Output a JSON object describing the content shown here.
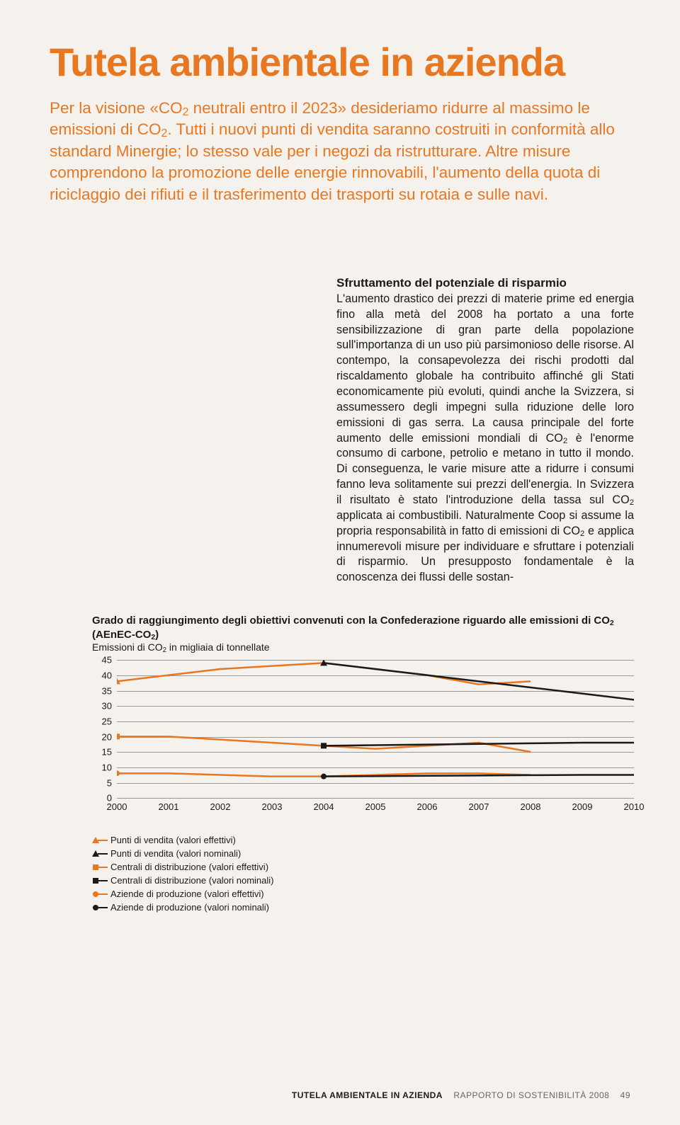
{
  "title": "Tutela ambientale in azienda",
  "intro": "Per la visione «CO<sub>2</sub> neutrali entro il 2023» desideriamo ridurre al massimo le emissioni di CO<sub>2</sub>. Tutti i nuovi punti di vendita saranno costruiti in conformità allo standard Minergie; lo stesso vale per i negozi da ristrutturare. Altre misure comprendono la promozione delle energie rinnovabili, l'aumento della quota di riciclaggio dei rifiuti e il trasferimento dei trasporti su rotaia e sulle navi.",
  "section_heading": "Sfruttamento del potenziale di risparmio",
  "section_body": "L'aumento drastico dei prezzi di materie prime ed energia fino alla metà del 2008 ha portato a una forte sensibilizzazione di gran parte della popolazione sull'importanza di un uso più parsimonioso delle risorse. Al contempo, la consapevolezza dei rischi prodotti dal riscaldamento globale ha contribuito affinché gli Stati economicamente più evoluti, quindi anche la Svizzera, si assumessero degli impegni sulla riduzione delle loro emissioni di gas serra. La causa principale del forte aumento delle emissioni mondiali di CO<sub>2</sub> è l'enorme consumo di carbone, petrolio e metano in tutto il mondo. Di conseguenza, le varie misure atte a ridurre i consumi fanno leva solitamente sui prezzi dell'energia. In Svizzera il risultato è stato l'introduzione della tassa sul CO<sub>2</sub> applicata ai combustibili. Naturalmente Coop si assume la propria responsabilità in fatto di emissioni di CO<sub>2</sub> e applica innumerevoli misure per individuare e sfruttare i potenziali di risparmio. Un presupposto fondamentale è la conoscenza dei flussi delle sostan-",
  "chart": {
    "title": "Grado di raggiungimento degli obiettivi convenuti con la Confederazione riguardo alle emissioni di CO<sub>2</sub> (AEnEC-CO<sub>2</sub>)",
    "subtitle": "Emissioni di CO<sub>2</sub> in migliaia di tonnellate",
    "y_ticks": [
      45,
      40,
      35,
      30,
      25,
      20,
      15,
      10,
      5,
      0
    ],
    "y_max": 45,
    "x_labels": [
      "2000",
      "2001",
      "2002",
      "2003",
      "2004",
      "2005",
      "2006",
      "2007",
      "2008",
      "2009",
      "2010"
    ],
    "grid_color": "#999999",
    "colors": {
      "effective": "#e87722",
      "nominal": "#1a1a1a"
    },
    "series": {
      "pv_eff": {
        "start_year": 2000,
        "values": [
          38,
          40,
          42,
          43,
          44,
          42,
          40,
          37,
          38
        ],
        "marker": "triangle",
        "color": "#e87722"
      },
      "pv_nom": {
        "start_year": 2004,
        "values": [
          44,
          42,
          40,
          38,
          36,
          34,
          32
        ],
        "marker": "triangle",
        "color": "#1a1a1a"
      },
      "cd_eff": {
        "start_year": 2000,
        "values": [
          20,
          20,
          19,
          18,
          17,
          16,
          17,
          18,
          15
        ],
        "marker": "square",
        "color": "#e87722"
      },
      "cd_nom": {
        "start_year": 2004,
        "values": [
          17,
          17.2,
          17.4,
          17.6,
          17.8,
          18,
          18
        ],
        "marker": "square",
        "color": "#1a1a1a"
      },
      "ap_eff": {
        "start_year": 2000,
        "values": [
          8,
          8,
          7.5,
          7,
          7,
          7.5,
          8,
          8,
          7.5
        ],
        "marker": "circle",
        "color": "#e87722"
      },
      "ap_nom": {
        "start_year": 2004,
        "values": [
          7,
          7.1,
          7.2,
          7.3,
          7.4,
          7.5,
          7.5
        ],
        "marker": "circle",
        "color": "#1a1a1a"
      }
    },
    "legend": [
      {
        "marker": "triangle",
        "color": "#e87722",
        "label": "Punti di vendita (valori effettivi)"
      },
      {
        "marker": "triangle",
        "color": "#1a1a1a",
        "label": "Punti di vendita (valori nominali)"
      },
      {
        "marker": "square",
        "color": "#e87722",
        "label": "Centrali di distribuzione (valori effettivi)"
      },
      {
        "marker": "square",
        "color": "#1a1a1a",
        "label": "Centrali di distribuzione (valori nominali)"
      },
      {
        "marker": "circle",
        "color": "#e87722",
        "label": "Aziende di produzione (valori effettivi)"
      },
      {
        "marker": "circle",
        "color": "#1a1a1a",
        "label": "Aziende di produzione (valori nominali)"
      }
    ]
  },
  "footer": {
    "section": "TUTELA AMBIENTALE IN AZIENDA",
    "doc": "RAPPORTO DI SOSTENIBILITÀ 2008",
    "page": "49"
  }
}
